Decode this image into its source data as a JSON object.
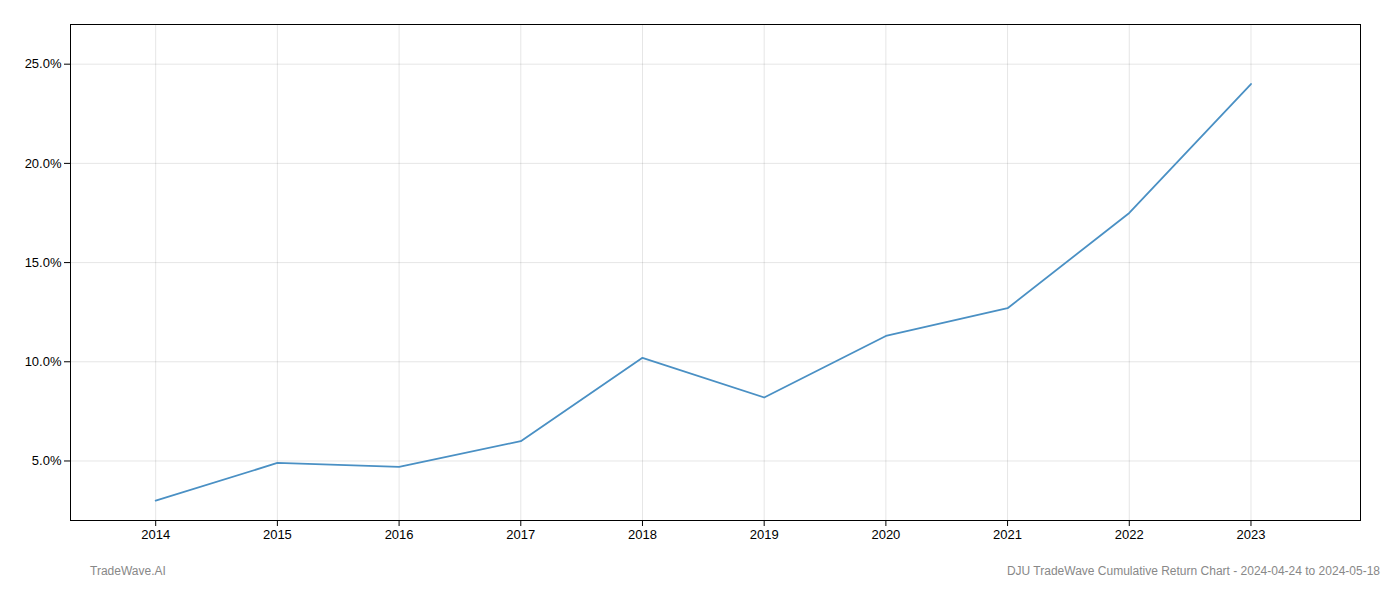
{
  "chart_data": {
    "type": "line",
    "x": [
      2014,
      2015,
      2016,
      2017,
      2018,
      2019,
      2020,
      2021,
      2022,
      2023
    ],
    "values": [
      3.0,
      4.9,
      4.7,
      6.0,
      10.2,
      8.2,
      11.3,
      12.7,
      17.5,
      24.0
    ],
    "color": "#4a90c4",
    "xlim": [
      2013.3,
      2023.9
    ],
    "xticks": [
      2014,
      2015,
      2016,
      2017,
      2018,
      2019,
      2020,
      2021,
      2022,
      2023
    ],
    "ylim": [
      2.0,
      27.0
    ],
    "yticks": [
      {
        "value": 5.0,
        "label": "5.0%"
      },
      {
        "value": 10.0,
        "label": "10.0%"
      },
      {
        "value": 15.0,
        "label": "15.0%"
      },
      {
        "value": 20.0,
        "label": "20.0%"
      },
      {
        "value": 25.0,
        "label": "25.0%"
      }
    ],
    "grid": true,
    "annotations": [
      "TradeWave.AI",
      "DJU TradeWave Cumulative Return Chart - 2024-04-24 to 2024-05-18"
    ]
  }
}
